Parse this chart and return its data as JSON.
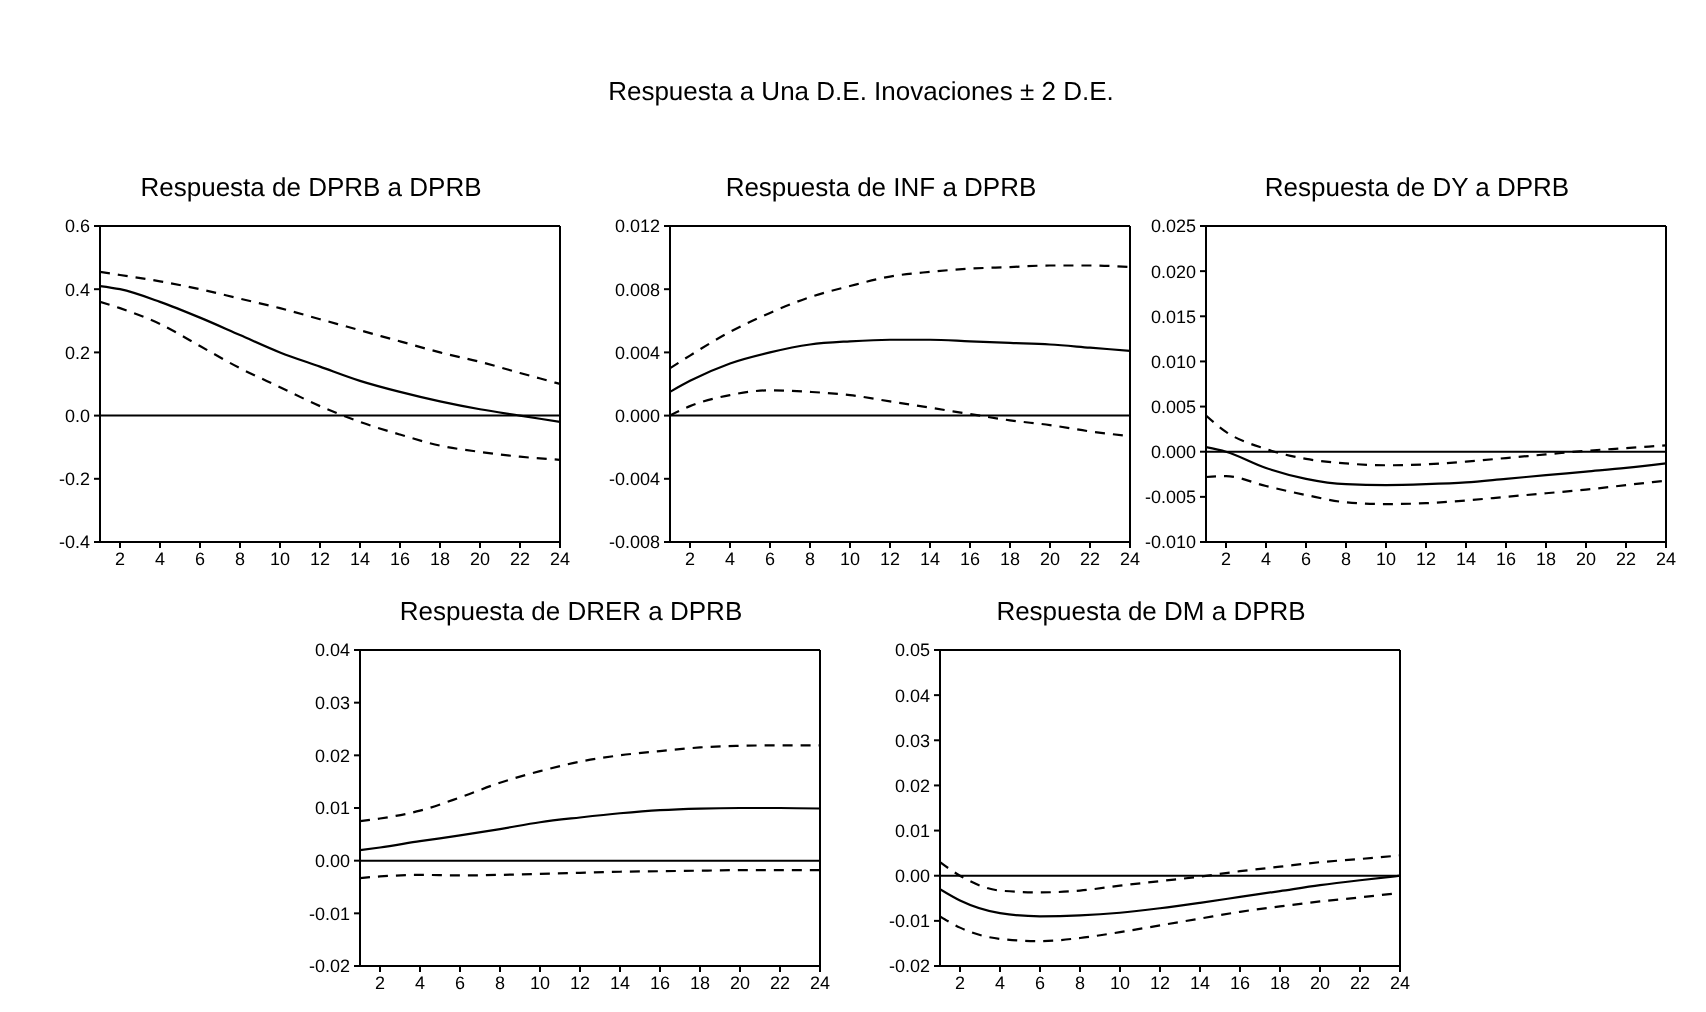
{
  "chart_data": [
    {
      "type": "line",
      "title": "Respuesta de DPRB a DPRB",
      "annotations": [
        "Respuesta a Una D.E. Inovaciones ± 2 D.E."
      ],
      "x": [
        1,
        2,
        4,
        6,
        8,
        10,
        12,
        14,
        16,
        18,
        20,
        22,
        24
      ],
      "xlim": [
        1,
        24
      ],
      "xticks": [
        2,
        4,
        6,
        8,
        10,
        12,
        14,
        16,
        18,
        20,
        22,
        24
      ],
      "ylim": [
        -0.4,
        0.6
      ],
      "yticks": [
        {
          "value": -0.4,
          "label": "-0.4"
        },
        {
          "value": -0.2,
          "label": "-0.2"
        },
        {
          "value": 0,
          "label": "0.0"
        },
        {
          "value": 0.2,
          "label": "0.2"
        },
        {
          "value": 0.4,
          "label": "0.4"
        },
        {
          "value": 0.6,
          "label": "0.6"
        }
      ],
      "grid": false,
      "ref_lines": [
        {
          "axis": "y",
          "value": 0,
          "color": "#000000"
        }
      ],
      "series": [
        {
          "color": "#000000",
          "line_style": "solid",
          "values": [
            0.41,
            0.4,
            0.36,
            0.31,
            0.255,
            0.2,
            0.155,
            0.11,
            0.075,
            0.045,
            0.02,
            0.0,
            -0.02
          ]
        },
        {
          "color": "#000000",
          "line_style": "dashed",
          "values": [
            0.455,
            0.445,
            0.425,
            0.4,
            0.37,
            0.34,
            0.305,
            0.27,
            0.235,
            0.2,
            0.17,
            0.135,
            0.1
          ]
        },
        {
          "color": "#000000",
          "line_style": "dashed",
          "values": [
            0.36,
            0.34,
            0.29,
            0.22,
            0.15,
            0.09,
            0.03,
            -0.02,
            -0.06,
            -0.095,
            -0.115,
            -0.13,
            -0.14
          ]
        }
      ]
    },
    {
      "type": "line",
      "title": "Respuesta de INF a DPRB",
      "x": [
        1,
        2,
        4,
        6,
        8,
        10,
        12,
        14,
        16,
        18,
        20,
        22,
        24
      ],
      "xlim": [
        1,
        24
      ],
      "xticks": [
        2,
        4,
        6,
        8,
        10,
        12,
        14,
        16,
        18,
        20,
        22,
        24
      ],
      "ylim": [
        -0.008,
        0.012
      ],
      "yticks": [
        {
          "value": -0.008,
          "label": "-0.008"
        },
        {
          "value": -0.004,
          "label": "-0.004"
        },
        {
          "value": 0,
          "label": "0.000"
        },
        {
          "value": 0.004,
          "label": "0.004"
        },
        {
          "value": 0.008,
          "label": "0.008"
        },
        {
          "value": 0.012,
          "label": "0.012"
        }
      ],
      "grid": false,
      "ref_lines": [
        {
          "axis": "y",
          "value": 0,
          "color": "#000000"
        }
      ],
      "series": [
        {
          "color": "#000000",
          "line_style": "solid",
          "values": [
            0.0015,
            0.0022,
            0.0033,
            0.004,
            0.0045,
            0.0047,
            0.0048,
            0.0048,
            0.0047,
            0.0046,
            0.0045,
            0.0043,
            0.0041
          ]
        },
        {
          "color": "#000000",
          "line_style": "dashed",
          "values": [
            0.003,
            0.0038,
            0.0053,
            0.0065,
            0.0075,
            0.0082,
            0.0088,
            0.0091,
            0.0093,
            0.0094,
            0.0095,
            0.0095,
            0.0094
          ]
        },
        {
          "color": "#000000",
          "line_style": "dashed",
          "values": [
            0.0,
            0.0006,
            0.0013,
            0.0016,
            0.0015,
            0.0013,
            0.0009,
            0.0005,
            0.0001,
            -0.0003,
            -0.0006,
            -0.001,
            -0.0013
          ]
        }
      ]
    },
    {
      "type": "line",
      "title": "Respuesta de DY a DPRB",
      "x": [
        1,
        2,
        4,
        6,
        8,
        10,
        12,
        14,
        16,
        18,
        20,
        22,
        24
      ],
      "xlim": [
        1,
        24
      ],
      "xticks": [
        2,
        4,
        6,
        8,
        10,
        12,
        14,
        16,
        18,
        20,
        22,
        24
      ],
      "ylim": [
        -0.01,
        0.025
      ],
      "yticks": [
        {
          "value": -0.01,
          "label": "-0.010"
        },
        {
          "value": -0.005,
          "label": "-0.005"
        },
        {
          "value": 0,
          "label": "0.000"
        },
        {
          "value": 0.005,
          "label": "0.005"
        },
        {
          "value": 0.01,
          "label": "0.010"
        },
        {
          "value": 0.015,
          "label": "0.015"
        },
        {
          "value": 0.02,
          "label": "0.020"
        },
        {
          "value": 0.025,
          "label": "0.025"
        }
      ],
      "grid": false,
      "ref_lines": [
        {
          "axis": "y",
          "value": 0,
          "color": "#000000"
        }
      ],
      "series": [
        {
          "color": "#000000",
          "line_style": "solid",
          "values": [
            0.0005,
            0.0,
            -0.0018,
            -0.003,
            -0.0036,
            -0.0037,
            -0.0036,
            -0.0034,
            -0.003,
            -0.0026,
            -0.0022,
            -0.0018,
            -0.0013
          ]
        },
        {
          "color": "#000000",
          "line_style": "dashed",
          "values": [
            0.004,
            0.0022,
            0.0003,
            -0.0008,
            -0.0013,
            -0.0015,
            -0.0014,
            -0.0011,
            -0.0007,
            -0.0003,
            0.0001,
            0.0004,
            0.0007
          ]
        },
        {
          "color": "#000000",
          "line_style": "dashed",
          "values": [
            -0.0028,
            -0.0027,
            -0.0038,
            -0.0048,
            -0.0056,
            -0.0058,
            -0.0057,
            -0.0054,
            -0.005,
            -0.0046,
            -0.0042,
            -0.0037,
            -0.0032
          ]
        }
      ]
    },
    {
      "type": "line",
      "title": "Respuesta de DRER a DPRB",
      "x": [
        1,
        2,
        4,
        6,
        8,
        10,
        12,
        14,
        16,
        18,
        20,
        22,
        24
      ],
      "xlim": [
        1,
        24
      ],
      "xticks": [
        2,
        4,
        6,
        8,
        10,
        12,
        14,
        16,
        18,
        20,
        22,
        24
      ],
      "ylim": [
        -0.02,
        0.04
      ],
      "yticks": [
        {
          "value": -0.02,
          "label": "-0.02"
        },
        {
          "value": -0.01,
          "label": "-0.01"
        },
        {
          "value": 0,
          "label": "0.00"
        },
        {
          "value": 0.01,
          "label": "0.01"
        },
        {
          "value": 0.02,
          "label": "0.02"
        },
        {
          "value": 0.03,
          "label": "0.03"
        },
        {
          "value": 0.04,
          "label": "0.04"
        }
      ],
      "grid": false,
      "ref_lines": [
        {
          "axis": "y",
          "value": 0,
          "color": "#000000"
        }
      ],
      "series": [
        {
          "color": "#000000",
          "line_style": "solid",
          "values": [
            0.002,
            0.0025,
            0.0037,
            0.0048,
            0.006,
            0.0073,
            0.0082,
            0.009,
            0.0096,
            0.0099,
            0.01,
            0.01,
            0.0099
          ]
        },
        {
          "color": "#000000",
          "line_style": "dashed",
          "values": [
            0.0075,
            0.008,
            0.0095,
            0.012,
            0.0148,
            0.017,
            0.0188,
            0.02,
            0.0208,
            0.0215,
            0.0218,
            0.0219,
            0.0219
          ]
        },
        {
          "color": "#000000",
          "line_style": "dashed",
          "values": [
            -0.0033,
            -0.003,
            -0.0027,
            -0.0028,
            -0.0027,
            -0.0025,
            -0.0023,
            -0.0021,
            -0.002,
            -0.0019,
            -0.0018,
            -0.0018,
            -0.0018
          ]
        }
      ]
    },
    {
      "type": "line",
      "title": "Respuesta de DM a DPRB",
      "x": [
        1,
        2,
        4,
        6,
        8,
        10,
        12,
        14,
        16,
        18,
        20,
        22,
        24
      ],
      "xlim": [
        1,
        24
      ],
      "xticks": [
        2,
        4,
        6,
        8,
        10,
        12,
        14,
        16,
        18,
        20,
        22,
        24
      ],
      "ylim": [
        -0.02,
        0.05
      ],
      "yticks": [
        {
          "value": -0.02,
          "label": "-0.02"
        },
        {
          "value": -0.01,
          "label": "-0.01"
        },
        {
          "value": 0,
          "label": "0.00"
        },
        {
          "value": 0.01,
          "label": "0.01"
        },
        {
          "value": 0.02,
          "label": "0.02"
        },
        {
          "value": 0.03,
          "label": "0.03"
        },
        {
          "value": 0.04,
          "label": "0.04"
        },
        {
          "value": 0.05,
          "label": "0.05"
        }
      ],
      "grid": false,
      "ref_lines": [
        {
          "axis": "y",
          "value": 0,
          "color": "#000000"
        }
      ],
      "series": [
        {
          "color": "#000000",
          "line_style": "solid",
          "values": [
            -0.003,
            -0.0055,
            -0.0083,
            -0.009,
            -0.0088,
            -0.0082,
            -0.0072,
            -0.006,
            -0.0047,
            -0.0034,
            -0.0021,
            -0.001,
            0.0
          ]
        },
        {
          "color": "#000000",
          "line_style": "dashed",
          "values": [
            0.003,
            0.0,
            -0.0033,
            -0.0037,
            -0.0033,
            -0.0022,
            -0.0012,
            -0.0002,
            0.001,
            0.002,
            0.003,
            0.0037,
            0.0045
          ]
        },
        {
          "color": "#000000",
          "line_style": "dashed",
          "values": [
            -0.009,
            -0.0115,
            -0.014,
            -0.0145,
            -0.0138,
            -0.0125,
            -0.011,
            -0.0095,
            -0.008,
            -0.0068,
            -0.0057,
            -0.0048,
            -0.0038
          ]
        }
      ]
    }
  ]
}
